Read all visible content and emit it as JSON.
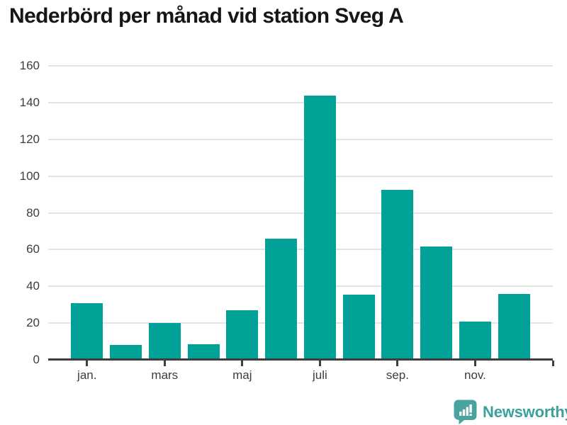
{
  "title": "Nederbörd per månad vid station Sveg A",
  "branding": {
    "logo_text": "Newsworthy",
    "logo_icon": "speech-bubble-with-bar-chart-and-exclamation",
    "logo_icon_color": "#48a49e",
    "logo_text_color": "#3aa29b"
  },
  "colors": {
    "background": "#ffffff",
    "bar": "#00a298",
    "axis": "#3e3e3e",
    "grid": "#e3e3e3",
    "tick_label": "#3d3d3d",
    "title": "#161616"
  },
  "chart_data": {
    "type": "bar",
    "title": "Nederbörd per månad vid station Sveg A",
    "categories_note": "12 monthly bars, January through December; only alternate months are labeled on the axis",
    "values": [
      31,
      8,
      20,
      8.5,
      27,
      66,
      144,
      35.5,
      92.5,
      61.5,
      21,
      36
    ],
    "x_axis": {
      "tick_labels": [
        "jan.",
        "mars",
        "maj",
        "juli",
        "sep.",
        "nov."
      ],
      "ticks_every_n_bars": 2,
      "extra_unlabeled_end_tick": true
    },
    "y_axis": {
      "ticks": [
        0,
        20,
        40,
        60,
        80,
        100,
        120,
        140,
        160
      ],
      "lim": [
        0,
        160
      ]
    },
    "grid": "horizontal",
    "legend": false
  }
}
